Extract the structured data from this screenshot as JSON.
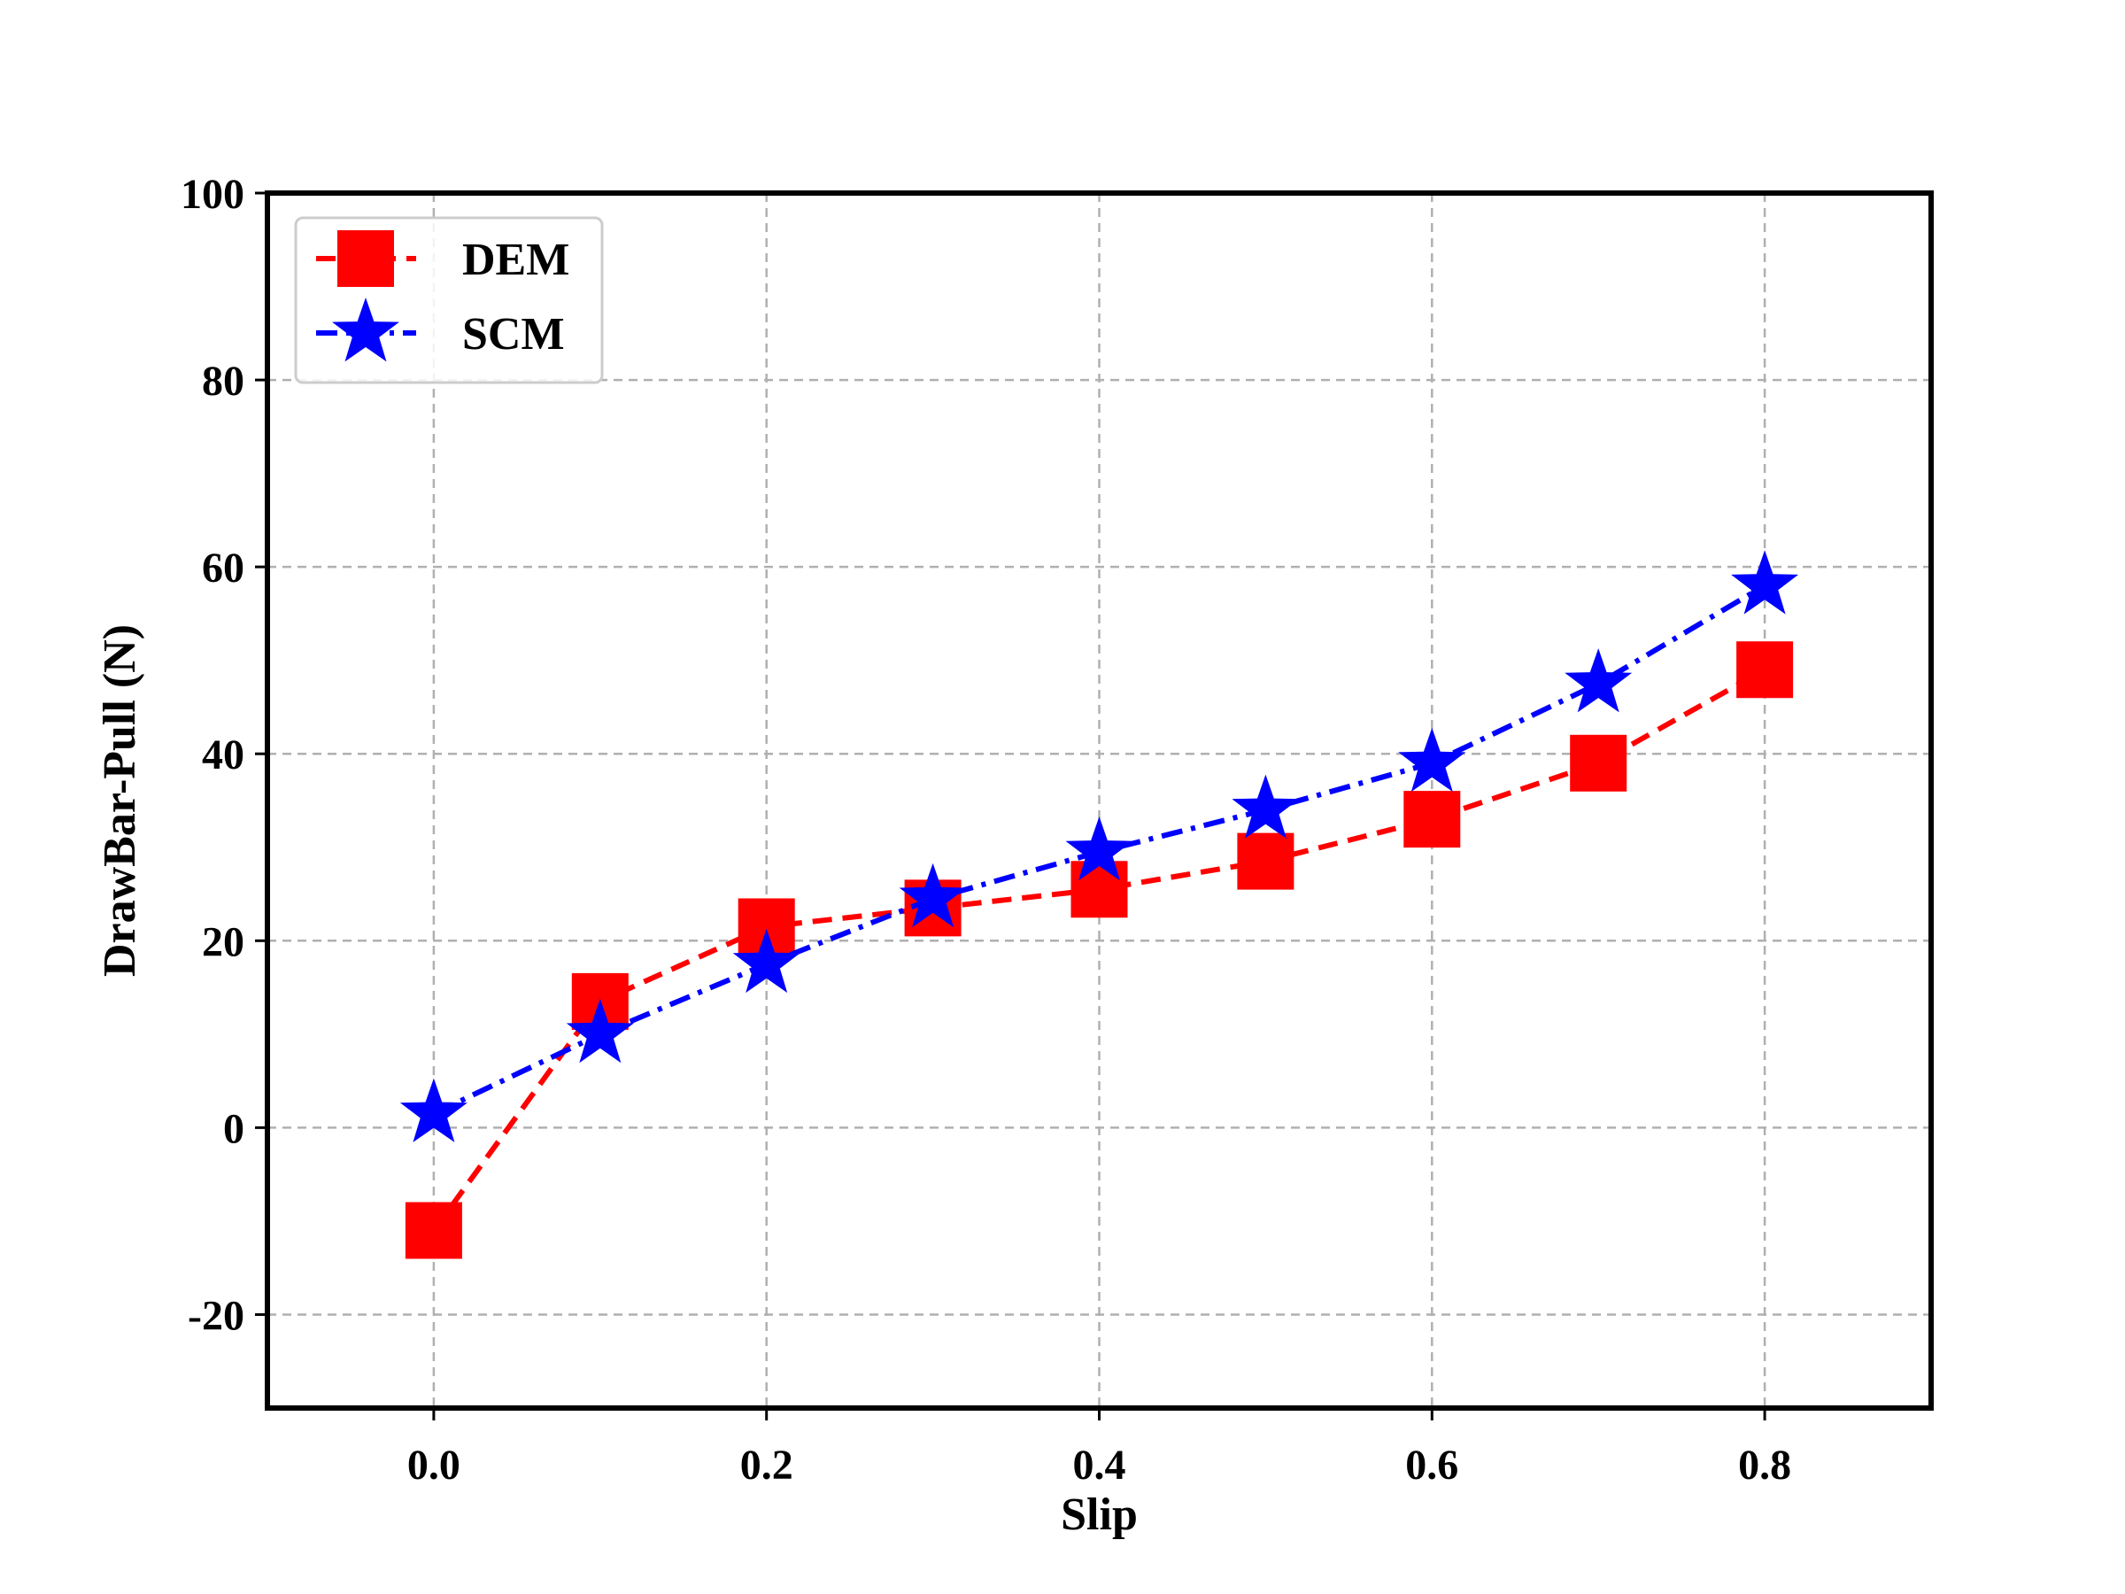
{
  "chart_data": {
    "type": "line",
    "title": "",
    "xlabel": "Slip",
    "ylabel": "DrawBar-Pull (N)",
    "xlim": [
      -0.1,
      0.9
    ],
    "ylim": [
      -30,
      100
    ],
    "x_ticks": [
      0.0,
      0.2,
      0.4,
      0.6,
      0.8
    ],
    "x_tick_labels": [
      "0.0",
      "0.2",
      "0.4",
      "0.6",
      "0.8"
    ],
    "y_ticks": [
      -20,
      0,
      20,
      40,
      60,
      80,
      100
    ],
    "y_tick_labels": [
      "-20",
      "0",
      "20",
      "40",
      "60",
      "80",
      "100"
    ],
    "grid": true,
    "legend_position": "top-left",
    "x": [
      0.0,
      0.1,
      0.2,
      0.3,
      0.4,
      0.5,
      0.6,
      0.7,
      0.8
    ],
    "series": [
      {
        "name": "DEM",
        "color": "#ff0000",
        "marker": "square",
        "line_style": "dashed",
        "values": [
          -11,
          13.5,
          21.5,
          23.5,
          25.5,
          28.5,
          33,
          39,
          49
        ]
      },
      {
        "name": "SCM",
        "color": "#0000ff",
        "marker": "star",
        "line_style": "dash-dot",
        "values": [
          1.5,
          10,
          17.5,
          24.5,
          29.5,
          34,
          39,
          47.5,
          58
        ]
      }
    ]
  }
}
